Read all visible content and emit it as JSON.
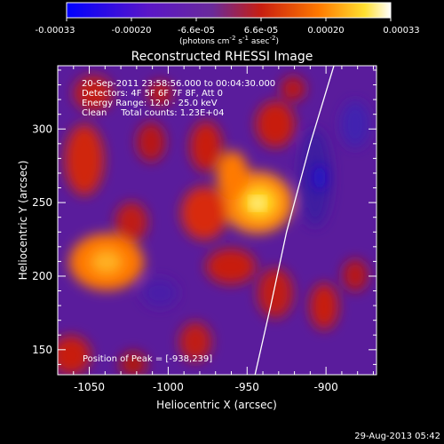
{
  "colorbar": {
    "tick_labels": [
      "-0.00033",
      "-0.00020",
      "-6.6e-05",
      "6.6e-05",
      "0.00020",
      "0.00033"
    ],
    "unit_prefix": "(photons cm",
    "unit_exp1": "-2",
    "unit_mid": " s",
    "unit_exp2": "-1",
    "unit_mid2": " asec",
    "unit_exp3": "-2",
    "unit_suffix": ")"
  },
  "chart_data": {
    "type": "heatmap",
    "title": "Reconstructed RHESSI Image",
    "xlabel": "Heliocentric X (arcsec)",
    "ylabel": "Heliocentric Y (arcsec)",
    "xlim": [
      -1070,
      -868
    ],
    "ylim": [
      133,
      343
    ],
    "x_ticks": [
      -1050,
      -1000,
      -950,
      -900
    ],
    "y_ticks": [
      150,
      200,
      250,
      300
    ],
    "value_range": [
      -0.00033,
      0.00033
    ],
    "colormap": "rhessi-blue-purple-red-yellow-white",
    "annotations": [
      "20-Sep-2011 23:58:56.000 to 00:04:30.000",
      "Detectors: 4F 5F 6F 7F 8F, Att 0",
      "Energy Range: 12.0 - 25.0 keV",
      "Clean     Total counts: 1.23E+04"
    ],
    "peak_label": "Position of Peak = [-938,239]",
    "peak": [
      -938,
      239
    ],
    "limb_curve": [
      [
        -945,
        133
      ],
      [
        -935,
        180
      ],
      [
        -925,
        230
      ],
      [
        -910,
        290
      ],
      [
        -895,
        343
      ]
    ]
  },
  "footer": {
    "timestamp": "29-Aug-2013 05:42"
  }
}
